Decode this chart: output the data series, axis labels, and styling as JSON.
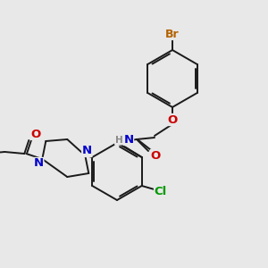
{
  "bg_color": "#e8e8e8",
  "bond_color": "#1a1a1a",
  "atom_colors": {
    "Br": "#b36200",
    "O": "#cc0000",
    "N": "#0000cc",
    "Cl": "#009900",
    "H": "#888888",
    "C": "#1a1a1a"
  },
  "lw": 1.4,
  "fs": 8.5
}
